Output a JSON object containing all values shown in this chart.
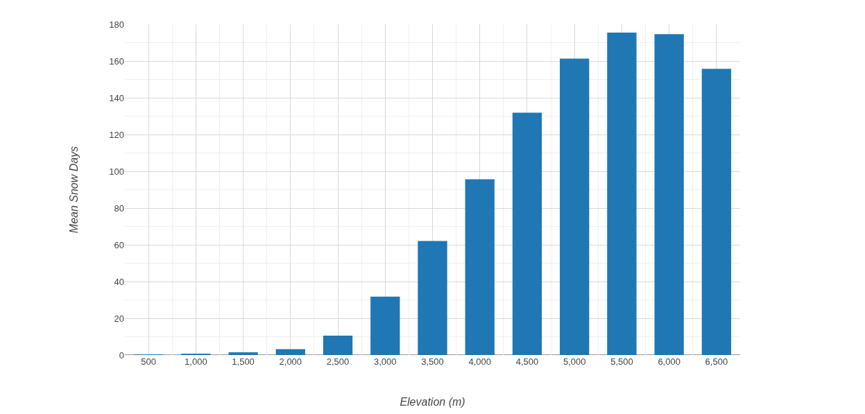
{
  "chart_data": {
    "type": "bar",
    "xlabel": "Elevation (m)",
    "ylabel": "Mean Snow Days",
    "categories": [
      "500",
      "1,000",
      "1,500",
      "2,000",
      "2,500",
      "3,000",
      "3,500",
      "4,000",
      "4,500",
      "5,000",
      "5,500",
      "6,000",
      "6,500"
    ],
    "values": [
      0.2,
      0.7,
      1.5,
      3.2,
      10.6,
      31.8,
      62.1,
      95.7,
      131.9,
      161.3,
      175.5,
      174.6,
      155.8
    ],
    "color": "#1f77b4",
    "ylim": [
      0,
      180
    ],
    "yticks": [
      0,
      20,
      40,
      60,
      80,
      100,
      120,
      140,
      160,
      180
    ],
    "grid": true
  }
}
